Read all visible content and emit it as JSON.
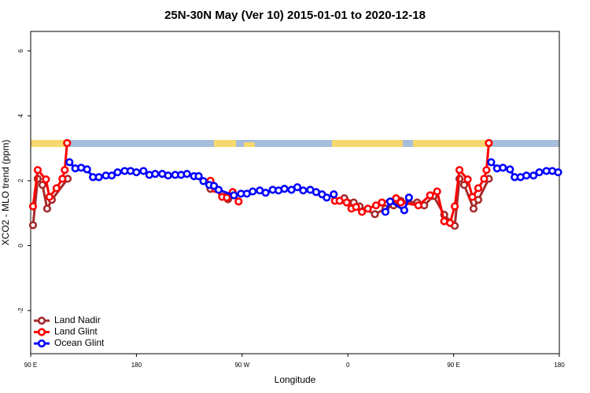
{
  "chart_data": {
    "type": "line",
    "title": "25N-30N May (Ver 10)   2015-01-01 to 2020-12-18",
    "x_label": "Longitude",
    "y_label": "XCO2 - MLO trend (ppm)",
    "xlim": [
      90,
      540
    ],
    "xticks": [
      {
        "value": 90,
        "label": "90 E"
      },
      180,
      {
        "value": 270,
        "label": "90 W"
      },
      {
        "value": 360,
        "label": "0"
      },
      {
        "value": 450,
        "label": "90 E"
      },
      {
        "value": 540,
        "label": "180"
      }
    ],
    "ylim": [
      -3.33,
      6.6
    ],
    "yticks": [
      -2,
      0,
      2,
      4,
      6
    ],
    "legend": "bottom-left",
    "series": [
      {
        "name": "Land Nadir",
        "color": "#a52a2a",
        "x": [
          92,
          96,
          100,
          104,
          108,
          121.5,
          null,
          243,
          253,
          258,
          null,
          357,
          365,
          370,
          383,
          392,
          399,
          405,
          419,
          425,
          433,
          442,
          451,
          455,
          459,
          467,
          471,
          480
        ],
        "values": [
          0.63,
          2.06,
          1.87,
          1.14,
          1.41,
          2.06,
          null,
          1.75,
          1.58,
          1.43,
          null,
          1.46,
          1.33,
          1.21,
          0.97,
          1.14,
          1.24,
          1.38,
          1.33,
          1.24,
          1.53,
          0.95,
          0.61,
          2.06,
          1.87,
          1.14,
          1.41,
          2.06
        ]
      },
      {
        "name": "Land Glint",
        "color": "#ff0000",
        "x": [
          92,
          96,
          103,
          106,
          112,
          117,
          119,
          121,
          null,
          243,
          247,
          253,
          257,
          262,
          267,
          null,
          349,
          353,
          359,
          363,
          367,
          372,
          377,
          384,
          389,
          401,
          405,
          420,
          430,
          436,
          442,
          447,
          451,
          455,
          462,
          466,
          471,
          476,
          478,
          480
        ],
        "values": [
          1.21,
          2.33,
          2.04,
          1.5,
          1.77,
          2.06,
          2.33,
          3.16,
          null,
          2.0,
          1.75,
          1.5,
          1.48,
          1.65,
          1.36,
          null,
          1.38,
          1.38,
          1.33,
          1.14,
          1.19,
          1.04,
          1.14,
          1.24,
          1.33,
          1.46,
          1.33,
          1.24,
          1.55,
          1.67,
          0.75,
          0.7,
          1.21,
          2.33,
          2.04,
          1.5,
          1.77,
          2.06,
          2.33,
          3.16
        ]
      },
      {
        "name": "Ocean Glint",
        "color": "#0000ff",
        "x": [
          123,
          128,
          133,
          138,
          143,
          148,
          154,
          159,
          164,
          170,
          175,
          180,
          186,
          191,
          196,
          202,
          207,
          213,
          218,
          223,
          229,
          233,
          237,
          242,
          246,
          250,
          263,
          269,
          274,
          279,
          285,
          290,
          296,
          301,
          306,
          312,
          317,
          322,
          328,
          333,
          338,
          342,
          348,
          null,
          392,
          396,
          408,
          412,
          null,
          482,
          487,
          492,
          498,
          502,
          507,
          512,
          518,
          523,
          529,
          534,
          539
        ],
        "values": [
          2.57,
          2.38,
          2.4,
          2.35,
          2.11,
          2.11,
          2.16,
          2.16,
          2.26,
          2.3,
          2.3,
          2.26,
          2.3,
          2.18,
          2.21,
          2.21,
          2.16,
          2.18,
          2.18,
          2.21,
          2.14,
          2.14,
          1.99,
          1.87,
          1.84,
          1.72,
          1.55,
          1.6,
          1.6,
          1.67,
          1.7,
          1.63,
          1.72,
          1.7,
          1.75,
          1.72,
          1.8,
          1.7,
          1.72,
          1.65,
          1.58,
          1.48,
          1.58,
          null,
          1.04,
          1.36,
          1.09,
          1.48,
          null,
          2.57,
          2.38,
          2.4,
          2.35,
          2.11,
          2.11,
          2.16,
          2.16,
          2.26,
          2.3,
          2.3,
          2.26
        ]
      }
    ]
  }
}
